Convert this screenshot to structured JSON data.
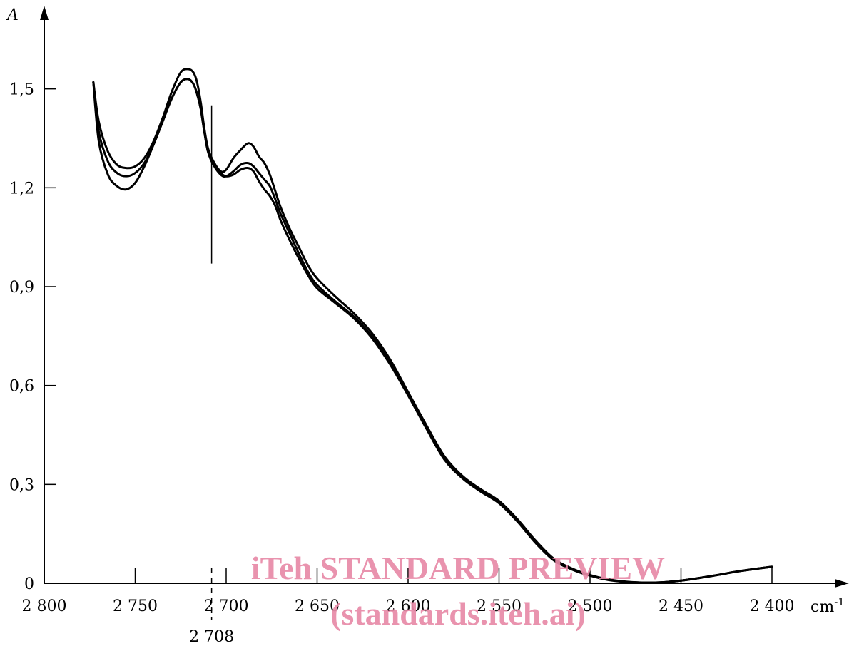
{
  "chart_data": {
    "type": "line",
    "ylabel": "A",
    "xlabel": "cm",
    "xlabel_superscript": "-1",
    "xlim": [
      2800,
      2400
    ],
    "ylim": [
      0,
      1.5
    ],
    "x_ticks": [
      {
        "value": 2800,
        "label": "2 800"
      },
      {
        "value": 2750,
        "label": "2 750"
      },
      {
        "value": 2700,
        "label": "2 700"
      },
      {
        "value": 2650,
        "label": "2 650"
      },
      {
        "value": 2600,
        "label": "2 600"
      },
      {
        "value": 2550,
        "label": "2 550"
      },
      {
        "value": 2500,
        "label": "2 500"
      },
      {
        "value": 2450,
        "label": "2 450"
      },
      {
        "value": 2400,
        "label": "2 400"
      }
    ],
    "y_ticks": [
      {
        "value": 0,
        "label": "0"
      },
      {
        "value": 0.3,
        "label": "0,3"
      },
      {
        "value": 0.6,
        "label": "0,6"
      },
      {
        "value": 0.9,
        "label": "0,9"
      },
      {
        "value": 1.2,
        "label": "1,2"
      },
      {
        "value": 1.5,
        "label": "1,5"
      }
    ],
    "annotations": [
      {
        "x": 2708,
        "label": "2 708",
        "y_top": 1.45,
        "y_bottom": 0.97
      }
    ],
    "grid": false,
    "legend": "none",
    "series": [
      {
        "x": [
          2773,
          2770,
          2765,
          2760,
          2755,
          2750,
          2745,
          2740,
          2735,
          2730,
          2725,
          2721,
          2718,
          2716,
          2714,
          2712,
          2710,
          2707,
          2703,
          2700,
          2696,
          2692,
          2688,
          2685,
          2682,
          2679,
          2676,
          2673,
          2670,
          2665,
          2660,
          2655,
          2650,
          2640,
          2630,
          2620,
          2610,
          2600,
          2590,
          2580,
          2570,
          2560,
          2550,
          2540,
          2530,
          2520,
          2510,
          2500,
          2490,
          2480,
          2470,
          2460,
          2450,
          2440,
          2430,
          2420,
          2410,
          2400
        ],
        "y": [
          1.52,
          1.4,
          1.31,
          1.27,
          1.26,
          1.265,
          1.29,
          1.34,
          1.41,
          1.49,
          1.55,
          1.56,
          1.55,
          1.52,
          1.46,
          1.38,
          1.32,
          1.28,
          1.25,
          1.255,
          1.29,
          1.315,
          1.335,
          1.325,
          1.295,
          1.275,
          1.24,
          1.19,
          1.14,
          1.075,
          1.02,
          0.965,
          0.925,
          0.87,
          0.82,
          0.76,
          0.68,
          0.58,
          0.48,
          0.385,
          0.325,
          0.285,
          0.25,
          0.195,
          0.13,
          0.075,
          0.045,
          0.025,
          0.012,
          0.005,
          0.002,
          0.003,
          0.008,
          0.016,
          0.025,
          0.035,
          0.043,
          0.05
        ]
      },
      {
        "x": [
          2773,
          2770,
          2765,
          2760,
          2755,
          2750,
          2745,
          2740,
          2735,
          2730,
          2725,
          2721,
          2718,
          2716,
          2714,
          2712,
          2710,
          2707,
          2703,
          2700,
          2696,
          2692,
          2688,
          2685,
          2682,
          2679,
          2676,
          2673,
          2670,
          2665,
          2660,
          2655,
          2650,
          2640,
          2630,
          2620,
          2610,
          2600,
          2590,
          2580,
          2570,
          2560,
          2550,
          2540,
          2530,
          2520,
          2510,
          2500,
          2490,
          2480,
          2470,
          2460,
          2450,
          2440,
          2430,
          2420,
          2410,
          2400
        ],
        "y": [
          1.52,
          1.37,
          1.28,
          1.245,
          1.235,
          1.245,
          1.275,
          1.33,
          1.4,
          1.47,
          1.52,
          1.53,
          1.515,
          1.485,
          1.44,
          1.37,
          1.31,
          1.27,
          1.24,
          1.235,
          1.25,
          1.27,
          1.275,
          1.265,
          1.245,
          1.225,
          1.205,
          1.165,
          1.12,
          1.06,
          1.0,
          0.945,
          0.905,
          0.855,
          0.81,
          0.75,
          0.67,
          0.575,
          0.475,
          0.38,
          0.32,
          0.28,
          0.245,
          0.19,
          0.125,
          0.072,
          0.043,
          0.024,
          0.011,
          0.004,
          0.002,
          0.003,
          0.008,
          0.016,
          0.025,
          0.035,
          0.043,
          0.05
        ]
      },
      {
        "x": [
          2773,
          2770,
          2765,
          2760,
          2755,
          2750,
          2745,
          2740,
          2735,
          2730,
          2725,
          2721,
          2718,
          2716,
          2714,
          2712,
          2710,
          2707,
          2703,
          2700,
          2696,
          2692,
          2688,
          2685,
          2682,
          2679,
          2676,
          2673,
          2670,
          2665,
          2660,
          2655,
          2650,
          2640,
          2630,
          2620,
          2610,
          2600,
          2590,
          2580,
          2570,
          2560,
          2550,
          2540,
          2530,
          2520,
          2510,
          2500,
          2490,
          2480,
          2470,
          2460,
          2450,
          2440,
          2430,
          2420,
          2410,
          2400
        ],
        "y": [
          1.52,
          1.34,
          1.24,
          1.205,
          1.195,
          1.215,
          1.265,
          1.33,
          1.4,
          1.47,
          1.52,
          1.53,
          1.515,
          1.485,
          1.44,
          1.37,
          1.31,
          1.27,
          1.245,
          1.235,
          1.24,
          1.255,
          1.26,
          1.25,
          1.22,
          1.195,
          1.175,
          1.145,
          1.1,
          1.04,
          0.985,
          0.935,
          0.895,
          0.85,
          0.805,
          0.745,
          0.665,
          0.57,
          0.47,
          0.375,
          0.318,
          0.278,
          0.243,
          0.188,
          0.123,
          0.07,
          0.042,
          0.023,
          0.01,
          0.004,
          0.002,
          0.003,
          0.008,
          0.016,
          0.025,
          0.035,
          0.043,
          0.05
        ]
      }
    ]
  },
  "watermark": {
    "line1": "iTeh STANDARD PREVIEW",
    "line2": "(standards.iteh.ai)"
  }
}
